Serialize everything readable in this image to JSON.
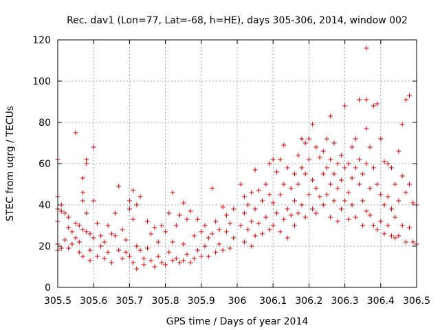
{
  "chart_data": {
    "type": "scatter",
    "title": "Rec. dav1 (Lon=77, Lat=-68, h=HE), days 305-306, 2014, window 002",
    "xlabel": "GPS time / Days of year 2014",
    "ylabel": "STEC from uqrg / TECUs",
    "xlim": [
      305.5,
      306.5
    ],
    "ylim": [
      0,
      120
    ],
    "xticks": [
      305.5,
      305.6,
      305.7,
      305.8,
      305.9,
      306,
      306.1,
      306.2,
      306.3,
      306.4,
      306.5
    ],
    "xtick_labels": [
      "305.5",
      "305.6",
      "305.7",
      "305.8",
      "305.9",
      "306",
      "306.1",
      "306.2",
      "306.3",
      "306.4",
      "306.5"
    ],
    "yticks": [
      0,
      20,
      40,
      60,
      80,
      100,
      120
    ],
    "ytick_labels": [
      "0",
      "20",
      "40",
      "60",
      "80",
      "100",
      "120"
    ],
    "grid": true,
    "marker": "+",
    "color": "#cc0000",
    "series": [
      {
        "name": "STEC",
        "points": [
          [
            305.5,
            62
          ],
          [
            305.5,
            44
          ],
          [
            305.5,
            38
          ],
          [
            305.5,
            32
          ],
          [
            305.5,
            21
          ],
          [
            305.5,
            18
          ],
          [
            305.51,
            40
          ],
          [
            305.51,
            37
          ],
          [
            305.51,
            19
          ],
          [
            305.52,
            36
          ],
          [
            305.52,
            23
          ],
          [
            305.53,
            34
          ],
          [
            305.53,
            29
          ],
          [
            305.53,
            19
          ],
          [
            305.54,
            27
          ],
          [
            305.54,
            21
          ],
          [
            305.55,
            75
          ],
          [
            305.55,
            31
          ],
          [
            305.55,
            24
          ],
          [
            305.56,
            30
          ],
          [
            305.56,
            22
          ],
          [
            305.56,
            17
          ],
          [
            305.57,
            53
          ],
          [
            305.57,
            46
          ],
          [
            305.57,
            42
          ],
          [
            305.57,
            28
          ],
          [
            305.57,
            15
          ],
          [
            305.58,
            62
          ],
          [
            305.58,
            60
          ],
          [
            305.58,
            36
          ],
          [
            305.58,
            27
          ],
          [
            305.59,
            26
          ],
          [
            305.59,
            18
          ],
          [
            305.59,
            13
          ],
          [
            305.6,
            68
          ],
          [
            305.6,
            42
          ],
          [
            305.6,
            24
          ],
          [
            305.61,
            31
          ],
          [
            305.61,
            15
          ],
          [
            305.62,
            25
          ],
          [
            305.62,
            20
          ],
          [
            305.63,
            22
          ],
          [
            305.63,
            14
          ],
          [
            305.64,
            30
          ],
          [
            305.64,
            17
          ],
          [
            305.65,
            26
          ],
          [
            305.65,
            12
          ],
          [
            305.66,
            36
          ],
          [
            305.66,
            25
          ],
          [
            305.67,
            49
          ],
          [
            305.67,
            18
          ],
          [
            305.68,
            28
          ],
          [
            305.68,
            14
          ],
          [
            305.69,
            23
          ],
          [
            305.69,
            17
          ],
          [
            305.7,
            42
          ],
          [
            305.7,
            38
          ],
          [
            305.7,
            15
          ],
          [
            305.71,
            47
          ],
          [
            305.71,
            33
          ],
          [
            305.71,
            12
          ],
          [
            305.72,
            40
          ],
          [
            305.72,
            20
          ],
          [
            305.72,
            9
          ],
          [
            305.73,
            44
          ],
          [
            305.73,
            18
          ],
          [
            305.74,
            14
          ],
          [
            305.74,
            11
          ],
          [
            305.75,
            32
          ],
          [
            305.75,
            19
          ],
          [
            305.76,
            26
          ],
          [
            305.76,
            13
          ],
          [
            305.77,
            29
          ],
          [
            305.77,
            10
          ],
          [
            305.78,
            22
          ],
          [
            305.78,
            15
          ],
          [
            305.79,
            30
          ],
          [
            305.79,
            12
          ],
          [
            305.8,
            27
          ],
          [
            305.8,
            11
          ],
          [
            305.81,
            36
          ],
          [
            305.81,
            17
          ],
          [
            305.82,
            46
          ],
          [
            305.82,
            22
          ],
          [
            305.82,
            13
          ],
          [
            305.83,
            30
          ],
          [
            305.83,
            14
          ],
          [
            305.84,
            35
          ],
          [
            305.84,
            12
          ],
          [
            305.85,
            41
          ],
          [
            305.85,
            21
          ],
          [
            305.85,
            13
          ],
          [
            305.86,
            33
          ],
          [
            305.86,
            16
          ],
          [
            305.87,
            37
          ],
          [
            305.87,
            12
          ],
          [
            305.88,
            25
          ],
          [
            305.88,
            14
          ],
          [
            305.89,
            33
          ],
          [
            305.89,
            18
          ],
          [
            305.9,
            27
          ],
          [
            305.9,
            15
          ],
          [
            305.91,
            30
          ],
          [
            305.91,
            20
          ],
          [
            305.92,
            24
          ],
          [
            305.92,
            15
          ],
          [
            305.93,
            48
          ],
          [
            305.93,
            26
          ],
          [
            305.94,
            32
          ],
          [
            305.94,
            17
          ],
          [
            305.95,
            28
          ],
          [
            305.95,
            21
          ],
          [
            305.96,
            39
          ],
          [
            305.96,
            18
          ],
          [
            305.97,
            35
          ],
          [
            305.97,
            27
          ],
          [
            305.98,
            31
          ],
          [
            305.98,
            19
          ],
          [
            305.99,
            38
          ],
          [
            305.99,
            24
          ],
          [
            306.01,
            50
          ],
          [
            306.01,
            30
          ],
          [
            306.02,
            44
          ],
          [
            306.02,
            36
          ],
          [
            306.02,
            22
          ],
          [
            306.03,
            40
          ],
          [
            306.03,
            28
          ],
          [
            306.04,
            46
          ],
          [
            306.04,
            32
          ],
          [
            306.04,
            20
          ],
          [
            306.05,
            57
          ],
          [
            306.05,
            38
          ],
          [
            306.05,
            25
          ],
          [
            306.06,
            47
          ],
          [
            306.06,
            31
          ],
          [
            306.07,
            42
          ],
          [
            306.07,
            26
          ],
          [
            306.08,
            50
          ],
          [
            306.08,
            34
          ],
          [
            306.09,
            60
          ],
          [
            306.09,
            45
          ],
          [
            306.09,
            28
          ],
          [
            306.1,
            62
          ],
          [
            306.1,
            41
          ],
          [
            306.1,
            30
          ],
          [
            306.11,
            56
          ],
          [
            306.11,
            36
          ],
          [
            306.12,
            62
          ],
          [
            306.12,
            45
          ],
          [
            306.12,
            27
          ],
          [
            306.13,
            69
          ],
          [
            306.13,
            50
          ],
          [
            306.13,
            33
          ],
          [
            306.14,
            58
          ],
          [
            306.14,
            38
          ],
          [
            306.14,
            24
          ],
          [
            306.15,
            48
          ],
          [
            306.15,
            35
          ],
          [
            306.16,
            55
          ],
          [
            306.16,
            42
          ],
          [
            306.16,
            30
          ],
          [
            306.17,
            64
          ],
          [
            306.17,
            50
          ],
          [
            306.17,
            36
          ],
          [
            306.18,
            72
          ],
          [
            306.18,
            58
          ],
          [
            306.18,
            40
          ],
          [
            306.19,
            70
          ],
          [
            306.19,
            55
          ],
          [
            306.19,
            34
          ],
          [
            306.2,
            72
          ],
          [
            306.2,
            62
          ],
          [
            306.2,
            45
          ],
          [
            306.21,
            79
          ],
          [
            306.21,
            52
          ],
          [
            306.21,
            38
          ],
          [
            306.22,
            68
          ],
          [
            306.22,
            48
          ],
          [
            306.22,
            36
          ],
          [
            306.23,
            63
          ],
          [
            306.23,
            44
          ],
          [
            306.24,
            66
          ],
          [
            306.24,
            55
          ],
          [
            306.24,
            40
          ],
          [
            306.25,
            72
          ],
          [
            306.25,
            58
          ],
          [
            306.25,
            45
          ],
          [
            306.26,
            83
          ],
          [
            306.26,
            62
          ],
          [
            306.26,
            50
          ],
          [
            306.26,
            34
          ],
          [
            306.27,
            70
          ],
          [
            306.27,
            55
          ],
          [
            306.27,
            42
          ],
          [
            306.28,
            60
          ],
          [
            306.28,
            48
          ],
          [
            306.28,
            32
          ],
          [
            306.29,
            64
          ],
          [
            306.29,
            52
          ],
          [
            306.29,
            38
          ],
          [
            306.3,
            88
          ],
          [
            306.3,
            58
          ],
          [
            306.3,
            42
          ],
          [
            306.31,
            60
          ],
          [
            306.31,
            46
          ],
          [
            306.31,
            33
          ],
          [
            306.32,
            68
          ],
          [
            306.32,
            53
          ],
          [
            306.32,
            40
          ],
          [
            306.33,
            72
          ],
          [
            306.33,
            58
          ],
          [
            306.33,
            34
          ],
          [
            306.34,
            91
          ],
          [
            306.34,
            62
          ],
          [
            306.34,
            50
          ],
          [
            306.35,
            55
          ],
          [
            306.35,
            42
          ],
          [
            306.35,
            30
          ],
          [
            306.36,
            116
          ],
          [
            306.36,
            91
          ],
          [
            306.36,
            77
          ],
          [
            306.36,
            60
          ],
          [
            306.36,
            37
          ],
          [
            306.37,
            68
          ],
          [
            306.37,
            48
          ],
          [
            306.37,
            35
          ],
          [
            306.38,
            88
          ],
          [
            306.38,
            58
          ],
          [
            306.38,
            30
          ],
          [
            306.39,
            89
          ],
          [
            306.39,
            50
          ],
          [
            306.39,
            28
          ],
          [
            306.4,
            72
          ],
          [
            306.4,
            45
          ],
          [
            306.4,
            32
          ],
          [
            306.41,
            61
          ],
          [
            306.41,
            40
          ],
          [
            306.41,
            26
          ],
          [
            306.42,
            60
          ],
          [
            306.42,
            44
          ],
          [
            306.42,
            30
          ],
          [
            306.43,
            58
          ],
          [
            306.43,
            38
          ],
          [
            306.43,
            25
          ],
          [
            306.44,
            50
          ],
          [
            306.44,
            34
          ],
          [
            306.44,
            24
          ],
          [
            306.45,
            66
          ],
          [
            306.45,
            42
          ],
          [
            306.45,
            25
          ],
          [
            306.46,
            79
          ],
          [
            306.46,
            54
          ],
          [
            306.46,
            30
          ],
          [
            306.47,
            91
          ],
          [
            306.47,
            46
          ],
          [
            306.47,
            22
          ],
          [
            306.48,
            93
          ],
          [
            306.48,
            50
          ],
          [
            306.48,
            29
          ],
          [
            306.49,
            41
          ],
          [
            306.49,
            22
          ],
          [
            306.5,
            40
          ],
          [
            306.5,
            21
          ]
        ]
      }
    ]
  }
}
